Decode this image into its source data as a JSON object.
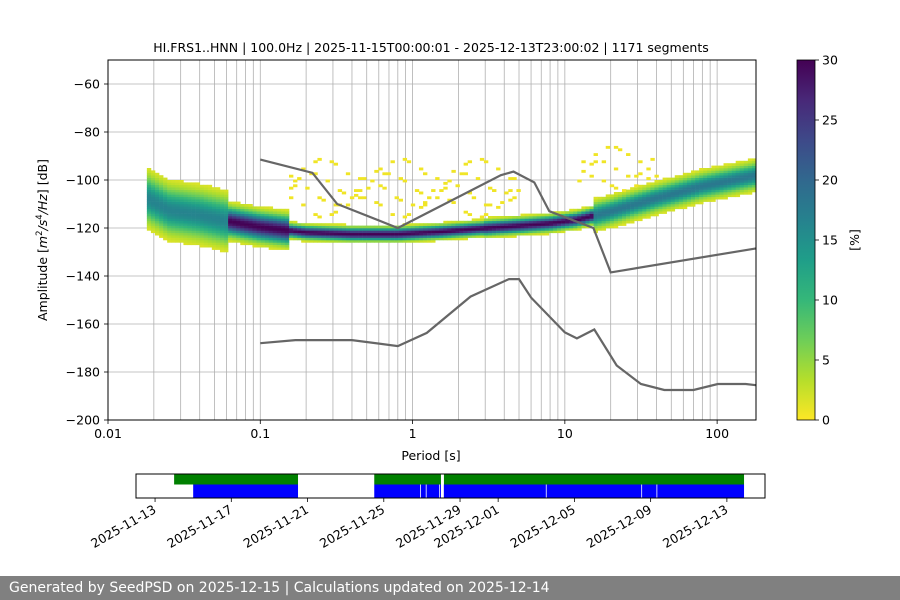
{
  "chart_data": {
    "type": "heatmap",
    "title": "HI.FRS1..HNN | 100.0Hz | 2025-11-15T00:00:01 - 2025-12-13T23:00:02 | 1171 segments",
    "xlabel": "Period [s]",
    "ylabel_parts": [
      "Amplitude [",
      "m",
      "2",
      "/s",
      "4",
      "/Hz",
      "] [dB]"
    ],
    "xscale": "log",
    "xlim": [
      0.01,
      180
    ],
    "ylim": [
      -200,
      -50
    ],
    "xticks": [
      {
        "value": 0.01,
        "label": "0.01"
      },
      {
        "value": 0.1,
        "label": "0.1"
      },
      {
        "value": 1,
        "label": "1"
      },
      {
        "value": 10,
        "label": "10"
      },
      {
        "value": 100,
        "label": "100"
      }
    ],
    "yticks": [
      {
        "value": -60,
        "label": "−60"
      },
      {
        "value": -80,
        "label": "−80"
      },
      {
        "value": -100,
        "label": "−100"
      },
      {
        "value": -120,
        "label": "−120"
      },
      {
        "value": -140,
        "label": "−140"
      },
      {
        "value": -160,
        "label": "−160"
      },
      {
        "value": -180,
        "label": "−180"
      },
      {
        "value": -200,
        "label": "−200"
      }
    ],
    "grid_periods": [
      0.02,
      0.03,
      0.04,
      0.05,
      0.06,
      0.07,
      0.08,
      0.09,
      0.1,
      0.2,
      0.3,
      0.4,
      0.5,
      0.6,
      0.7,
      0.8,
      0.9,
      1,
      2,
      3,
      4,
      5,
      6,
      7,
      8,
      9,
      10,
      20,
      30,
      40,
      50,
      60,
      70,
      80,
      90,
      100
    ],
    "grid_amplitudes": [
      -60,
      -80,
      -100,
      -120,
      -140,
      -160,
      -180
    ],
    "colorbar": {
      "label": "[%]",
      "min": 0,
      "max": 30,
      "ticks": [
        {
          "value": 0,
          "label": "0"
        },
        {
          "value": 5,
          "label": "5"
        },
        {
          "value": 10,
          "label": "10"
        },
        {
          "value": 15,
          "label": "15"
        },
        {
          "value": 20,
          "label": "20"
        },
        {
          "value": 25,
          "label": "25"
        },
        {
          "value": 30,
          "label": "30"
        }
      ],
      "colormap": [
        "#fde725",
        "#b5de2b",
        "#6ece58",
        "#35b779",
        "#1f9e89",
        "#26828e",
        "#31688e",
        "#3e4989",
        "#482878",
        "#440154"
      ]
    },
    "series": [
      {
        "name": "upper noise model",
        "color": "#666666",
        "points": [
          [
            0.1,
            -91.5
          ],
          [
            0.22,
            -97
          ],
          [
            0.32,
            -110
          ],
          [
            0.8,
            -120
          ],
          [
            3.8,
            -98
          ],
          [
            4.6,
            -96.5
          ],
          [
            6.3,
            -101
          ],
          [
            7.9,
            -113
          ],
          [
            15.4,
            -120
          ],
          [
            20,
            -138.5
          ],
          [
            180,
            -128.5
          ]
        ]
      },
      {
        "name": "lower noise model",
        "color": "#666666",
        "points": [
          [
            0.1,
            -168
          ],
          [
            0.17,
            -166.7
          ],
          [
            0.4,
            -166.7
          ],
          [
            0.8,
            -169.2
          ],
          [
            1.24,
            -163.7
          ],
          [
            2.4,
            -148.6
          ],
          [
            4.3,
            -141.3
          ],
          [
            5.0,
            -141.3
          ],
          [
            6.0,
            -149
          ],
          [
            10,
            -163.5
          ],
          [
            12,
            -166
          ],
          [
            15.6,
            -162.3
          ],
          [
            21.9,
            -177.3
          ],
          [
            31.6,
            -185
          ],
          [
            45,
            -187.5
          ],
          [
            70,
            -187.5
          ],
          [
            101,
            -185
          ],
          [
            154,
            -185
          ],
          [
            180,
            -185.5
          ]
        ]
      }
    ],
    "psd_ridge": [
      [
        0.018,
        -108
      ],
      [
        0.025,
        -113
      ],
      [
        0.04,
        -115
      ],
      [
        0.06,
        -117.5
      ],
      [
        0.1,
        -120
      ],
      [
        0.2,
        -122.3
      ],
      [
        0.4,
        -123
      ],
      [
        0.8,
        -123
      ],
      [
        1.5,
        -122
      ],
      [
        3,
        -120.5
      ],
      [
        5,
        -119.5
      ],
      [
        8,
        -118.5
      ],
      [
        12,
        -117
      ],
      [
        20,
        -113.5
      ],
      [
        40,
        -108
      ],
      [
        80,
        -103
      ],
      [
        180,
        -98.5
      ]
    ],
    "availability": {
      "ticks": [
        "2025-11-13",
        "2025-11-17",
        "2025-11-21",
        "2025-11-25",
        "2025-11-29",
        "2025-12-01",
        "2025-12-05",
        "2025-12-09",
        "2025-12-13"
      ],
      "tick_days": [
        -2,
        2,
        6,
        10,
        14,
        16,
        20,
        24,
        28
      ],
      "day_range": [
        -3,
        30
      ],
      "green_bars": [
        [
          -1,
          5.5
        ],
        [
          9.5,
          13.0
        ],
        [
          13.15,
          28.9
        ]
      ],
      "blue_bars": [
        [
          0,
          5.5
        ],
        [
          9.5,
          28.9
        ]
      ],
      "white_gaps": [
        13.0,
        13.15
      ],
      "thin_gaps": [
        11.9,
        12.2,
        12.9,
        18.5,
        23.5,
        24.3
      ],
      "colors": {
        "green": "#008000",
        "blue": "#0000ff"
      }
    }
  },
  "footer": "Generated by SeedPSD on 2025-12-15 | Calculations updated on 2025-12-14"
}
